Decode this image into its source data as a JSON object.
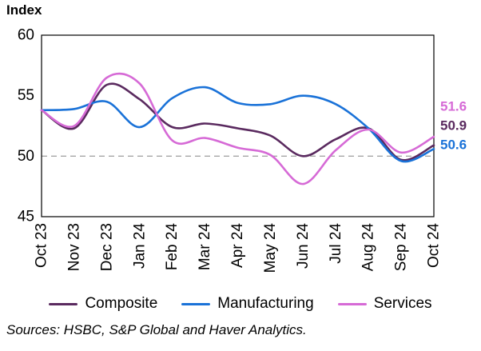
{
  "title": "Index",
  "sources": "Sources: HSBC, S&P Global and Haver Analytics.",
  "chart_data": {
    "type": "line",
    "title": "Index",
    "x_labels": [
      "Oct 23",
      "Nov 23",
      "Dec 23",
      "Jan 24",
      "Feb 24",
      "Mar 24",
      "Apr 24",
      "May 24",
      "Jun 24",
      "Jul 24",
      "Aug 24",
      "Sep 24",
      "Oct 24"
    ],
    "ylim": [
      45,
      60
    ],
    "yticks": [
      60,
      55,
      50,
      45
    ],
    "grid": "off",
    "legend_position": "bottom",
    "reference_line": {
      "value": 50,
      "color": "#a6a6a6",
      "style": "dashed"
    },
    "series": [
      {
        "name": "Composite",
        "color": "#5a2a5f",
        "values": [
          53.8,
          52.3,
          55.9,
          54.7,
          52.4,
          52.7,
          52.3,
          51.7,
          50.0,
          51.4,
          52.3,
          49.7,
          50.9
        ],
        "end_label": "50.9"
      },
      {
        "name": "Manufacturing",
        "color": "#1a72d8",
        "values": [
          53.8,
          53.9,
          54.5,
          52.4,
          54.8,
          55.7,
          54.4,
          54.3,
          55.0,
          54.3,
          52.3,
          49.6,
          50.6
        ],
        "end_label": "50.6"
      },
      {
        "name": "Services",
        "color": "#d66ad6",
        "values": [
          53.8,
          52.5,
          56.5,
          56.0,
          51.3,
          51.5,
          50.7,
          50.1,
          47.7,
          50.5,
          52.2,
          50.3,
          51.6
        ],
        "end_label": "51.6"
      }
    ],
    "end_labels_top_to_bottom": [
      "Services",
      "Composite",
      "Manufacturing"
    ]
  }
}
